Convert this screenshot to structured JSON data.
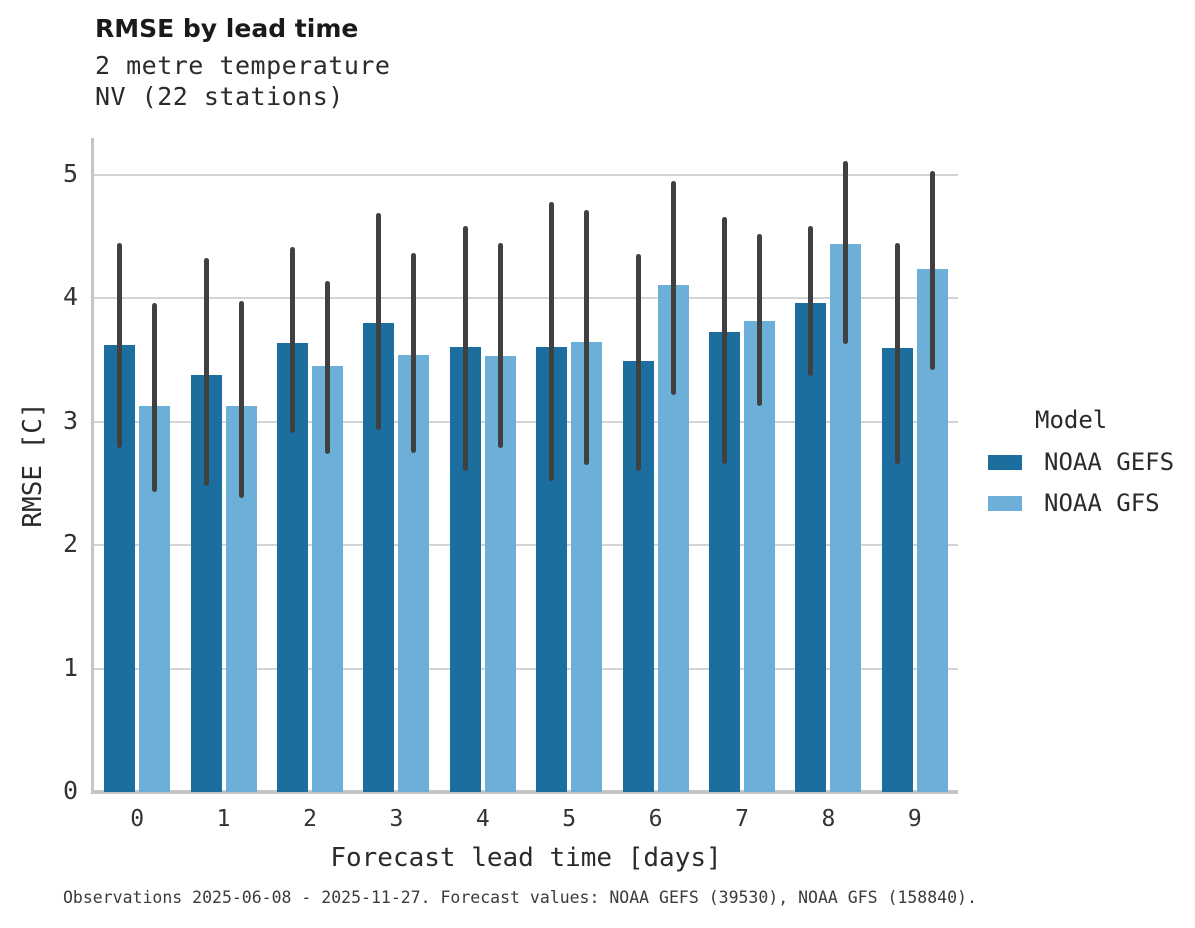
{
  "header": {
    "title": "RMSE by lead time",
    "subtitle_line1": "2 metre temperature",
    "subtitle_line2": "NV (22 stations)"
  },
  "chart_data": {
    "type": "bar",
    "title": "RMSE by lead time",
    "subtitle_lines": [
      "2 metre temperature",
      "NV (22 stations)"
    ],
    "xlabel": "Forecast lead time [days]",
    "ylabel": "RMSE [C]",
    "categories": [
      "0",
      "1",
      "2",
      "3",
      "4",
      "5",
      "6",
      "7",
      "8",
      "9"
    ],
    "yticks": [
      0,
      1,
      2,
      3,
      4,
      5
    ],
    "ylim": [
      0,
      5.3
    ],
    "grid": "horizontal-y",
    "error_bars": "min-max whiskers per bar",
    "legend": {
      "title": "Model",
      "position": "right"
    },
    "series": [
      {
        "name": "NOAA GEFS",
        "color": "#1c6e9f",
        "values": [
          3.62,
          3.38,
          3.64,
          3.8,
          3.61,
          3.61,
          3.49,
          3.73,
          3.96,
          3.6
        ],
        "err_low": [
          2.79,
          2.48,
          2.91,
          2.93,
          2.6,
          2.52,
          2.6,
          2.66,
          3.37,
          2.66
        ],
        "err_high": [
          4.45,
          4.33,
          4.42,
          4.69,
          4.59,
          4.78,
          4.36,
          4.66,
          4.59,
          4.45
        ]
      },
      {
        "name": "NOAA GFS",
        "color": "#6cb0d9",
        "values": [
          3.13,
          3.13,
          3.45,
          3.54,
          3.53,
          3.65,
          4.11,
          3.82,
          4.44,
          4.24
        ],
        "err_low": [
          2.43,
          2.38,
          2.74,
          2.75,
          2.79,
          2.65,
          3.22,
          3.13,
          3.63,
          3.42
        ],
        "err_high": [
          3.96,
          3.98,
          4.14,
          4.37,
          4.45,
          4.72,
          4.95,
          4.52,
          5.11,
          5.03
        ]
      }
    ],
    "colors": {
      "error_bar": "#404040",
      "gridline": "#d4d4d4",
      "axis": "#c6c6c6"
    }
  },
  "footer": {
    "caption": "Observations 2025-06-08 - 2025-11-27. Forecast values: NOAA GEFS (39530), NOAA GFS (158840)."
  }
}
